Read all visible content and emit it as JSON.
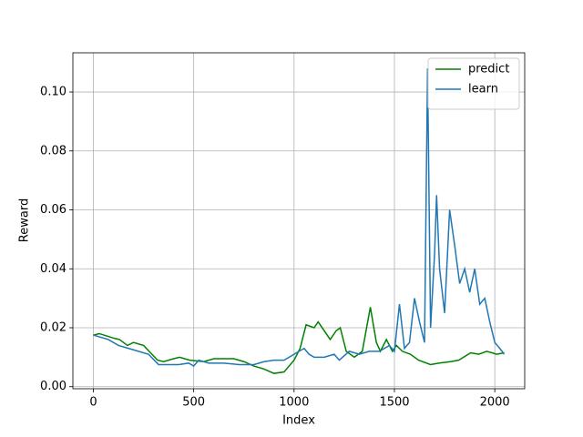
{
  "chart_data": {
    "type": "line",
    "x_label": "Index",
    "y_label": "Reward",
    "xlim": [
      -102,
      2149
    ],
    "ylim": [
      -0.0007,
      0.1133
    ],
    "xticks": [
      0,
      500,
      1000,
      1500,
      2000
    ],
    "yticks": [
      {
        "value": 0,
        "label": "0.00"
      },
      {
        "value": 0.02,
        "label": "0.02"
      },
      {
        "value": 0.04,
        "label": "0.04"
      },
      {
        "value": 0.06,
        "label": "0.06"
      },
      {
        "value": 0.08,
        "label": "0.08"
      },
      {
        "value": 0.1,
        "label": "0.10"
      }
    ],
    "grid": true,
    "legend": "upper right",
    "series": [
      {
        "name": "predict",
        "color": "#008000",
        "x": [
          0,
          30,
          100,
          130,
          170,
          200,
          250,
          320,
          350,
          400,
          430,
          480,
          550,
          600,
          700,
          750,
          800,
          850,
          900,
          950,
          1000,
          1030,
          1060,
          1100,
          1120,
          1150,
          1180,
          1210,
          1230,
          1260,
          1300,
          1340,
          1380,
          1410,
          1430,
          1460,
          1490,
          1510,
          1540,
          1580,
          1620,
          1680,
          1720,
          1780,
          1820,
          1880,
          1920,
          1960,
          2010,
          2047
        ],
        "values": [
          0.0175,
          0.018,
          0.0165,
          0.016,
          0.014,
          0.015,
          0.014,
          0.009,
          0.0085,
          0.0095,
          0.01,
          0.009,
          0.0085,
          0.0095,
          0.0095,
          0.0085,
          0.007,
          0.006,
          0.0045,
          0.005,
          0.009,
          0.013,
          0.021,
          0.02,
          0.022,
          0.019,
          0.016,
          0.019,
          0.02,
          0.012,
          0.01,
          0.012,
          0.027,
          0.015,
          0.012,
          0.016,
          0.012,
          0.014,
          0.012,
          0.011,
          0.009,
          0.0075,
          0.008,
          0.0085,
          0.009,
          0.0115,
          0.011,
          0.012,
          0.011,
          0.0115
        ]
      },
      {
        "name": "learn",
        "color": "#1f77b4",
        "x": [
          0,
          75,
          125,
          175,
          225,
          275,
          325,
          375,
          425,
          475,
          500,
          525,
          575,
          650,
          725,
          800,
          850,
          900,
          950,
          1000,
          1025,
          1050,
          1075,
          1100,
          1150,
          1200,
          1225,
          1275,
          1325,
          1375,
          1425,
          1475,
          1500,
          1525,
          1550,
          1575,
          1600,
          1625,
          1650,
          1665,
          1680,
          1700,
          1710,
          1725,
          1750,
          1775,
          1800,
          1825,
          1850,
          1875,
          1900,
          1925,
          1950,
          1975,
          2000,
          2025,
          2047
        ],
        "values": [
          0.0175,
          0.016,
          0.014,
          0.013,
          0.012,
          0.011,
          0.0075,
          0.0075,
          0.0075,
          0.008,
          0.007,
          0.009,
          0.008,
          0.008,
          0.0075,
          0.0075,
          0.0085,
          0.009,
          0.009,
          0.011,
          0.012,
          0.013,
          0.011,
          0.01,
          0.01,
          0.011,
          0.009,
          0.012,
          0.011,
          0.012,
          0.012,
          0.014,
          0.012,
          0.028,
          0.013,
          0.015,
          0.03,
          0.022,
          0.015,
          0.108,
          0.02,
          0.045,
          0.065,
          0.04,
          0.025,
          0.06,
          0.048,
          0.035,
          0.04,
          0.032,
          0.04,
          0.028,
          0.03,
          0.022,
          0.015,
          0.013,
          0.011
        ]
      }
    ]
  }
}
